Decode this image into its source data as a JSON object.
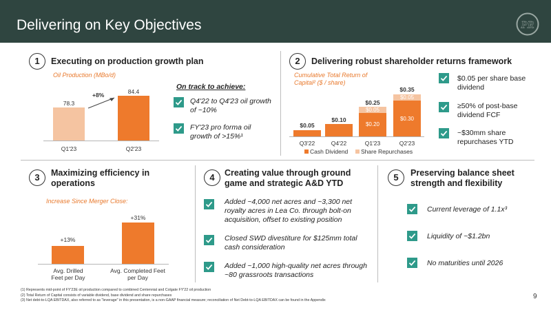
{
  "header": {
    "title": "Delivering on Key Objectives",
    "logo_text": "PR"
  },
  "section1": {
    "number": "1",
    "title": "Executing on production growth plan",
    "subtitle": "Oil Production (MBo/d)",
    "chart_data": {
      "type": "bar",
      "categories": [
        "Q1'23",
        "Q2'23"
      ],
      "values": [
        78.3,
        84.4
      ],
      "value_labels": [
        "78.3",
        "84.4"
      ],
      "annotation": "+8%",
      "colors": [
        "#f5c4a1",
        "#ee7a2c"
      ]
    },
    "track_title": "On track to achieve:",
    "items": [
      "Q4'22 to Q4'23 oil growth of ~10%",
      "FY'23 pro forma oil growth of >15%¹"
    ]
  },
  "section2": {
    "number": "2",
    "title": "Delivering robust shareholder returns framework",
    "subtitle": "Cumulative Total Return of Capital² ($ / share)",
    "chart_data": {
      "type": "bar",
      "stacked": true,
      "categories": [
        "Q3'22",
        "Q4'22",
        "Q1'23",
        "Q2'23"
      ],
      "series": [
        {
          "name": "Cash Dividend",
          "values": [
            0.05,
            0.1,
            0.2,
            0.3
          ],
          "labels": [
            "",
            "",
            "$0.20",
            "$0.30"
          ],
          "color": "#ee7a2c"
        },
        {
          "name": "Share Repurchases",
          "values": [
            0,
            0,
            0.05,
            0.05
          ],
          "labels": [
            "",
            "",
            "$0.05",
            "$0.05"
          ],
          "color": "#f5c4a1"
        }
      ],
      "totals": [
        "$0.05",
        "$0.10",
        "$0.25",
        "$0.35"
      ]
    },
    "items": [
      "$0.05 per share base dividend",
      "≥50% of post-base dividend FCF",
      "~$30mm share repurchases YTD"
    ]
  },
  "section3": {
    "number": "3",
    "title": "Maximizing efficiency in operations",
    "subtitle": "Increase Since Merger Close:",
    "chart_data": {
      "type": "bar",
      "categories": [
        "Avg. Drilled Feet per Day",
        "Avg. Completed Feet per Day"
      ],
      "values": [
        13,
        31
      ],
      "value_labels": [
        "+13%",
        "+31%"
      ],
      "ylim": [
        0,
        35
      ],
      "color": "#ee7a2c"
    }
  },
  "section4": {
    "number": "4",
    "title": "Creating value through ground game and strategic A&D YTD",
    "items": [
      "Added ~4,000 net acres and ~3,300 net royalty acres in Lea Co. through bolt-on acquisition, offset to existing position",
      "Closed SWD divestiture for $125mm total cash consideration",
      "Added ~1,000 high-quality net acres through ~80 grassroots transactions"
    ]
  },
  "section5": {
    "number": "5",
    "title": "Preserving balance sheet strength and flexibility",
    "items": [
      "Current leverage of 1.1x³",
      "Liquidity of ~$1.2bn",
      "No maturities until 2026"
    ]
  },
  "footnotes": [
    "(1)    Represents mid-point of FY'23E oil production compared to combined Centennial and Colgate FY'22 oil production",
    "(2)    Total Return of Capital consists of variable dividend, base dividend and share repurchases",
    "(3)    Net debt-to-LQA EBITDAX, also referred to as \"leverage\" in this presentation, is a non-GAAP financial measure; reconciliation of Net Debt-to-LQA EBITDAX can be found in the Appendix"
  ],
  "page_number": "9",
  "colors": {
    "header": "#2f4540",
    "accent": "#ee7a2c",
    "accent_light": "#f5c4a1",
    "check": "#2e9a8a"
  }
}
